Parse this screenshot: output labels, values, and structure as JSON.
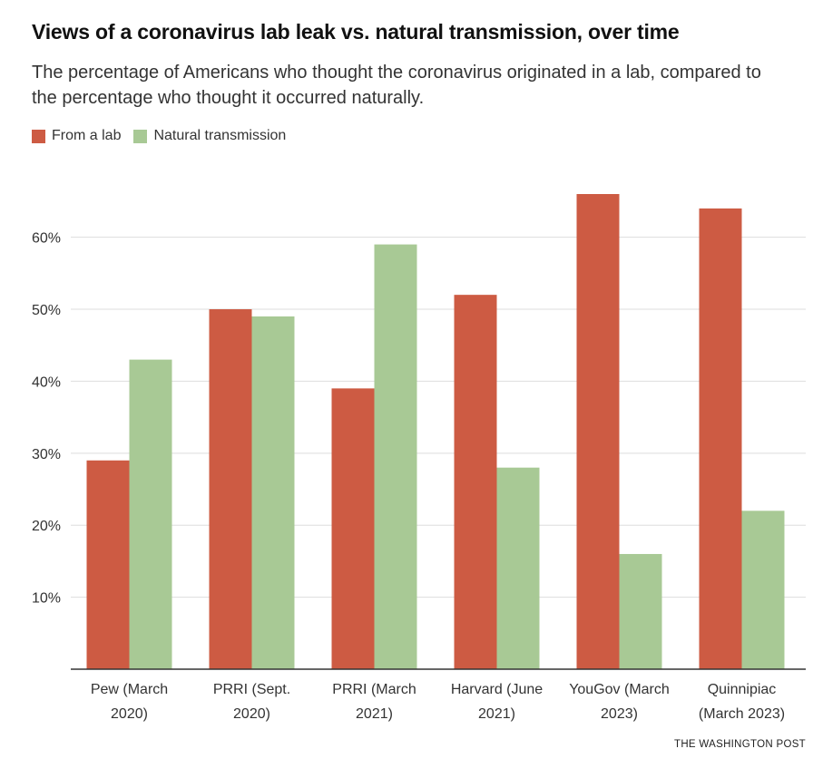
{
  "title": "Views of a coronavirus lab leak vs. natural transmission, over time",
  "subtitle": "The percentage of Americans who thought the coronavirus originated in a lab, compared to the percentage who thought it occurred naturally.",
  "credit": "THE WASHINGTON POST",
  "colors": {
    "lab": "#cd5b43",
    "natural": "#a8c995",
    "grid": "#dddddd",
    "axis": "#333333"
  },
  "chart_data": {
    "type": "bar",
    "title": "Views of a coronavirus lab leak vs. natural transmission, over time",
    "categories": [
      [
        "Pew (March",
        "2020)"
      ],
      [
        "PRRI (Sept.",
        "2020)"
      ],
      [
        "PRRI (March",
        "2021)"
      ],
      [
        "Harvard (June",
        "2021)"
      ],
      [
        "YouGov (March",
        "2023)"
      ],
      [
        "Quinnipiac",
        "(March 2023)"
      ]
    ],
    "series": [
      {
        "name": "From a lab",
        "values": [
          29,
          50,
          39,
          52,
          66,
          64
        ]
      },
      {
        "name": "Natural transmission",
        "values": [
          43,
          49,
          59,
          28,
          16,
          22
        ]
      }
    ],
    "yticks": [
      "10%",
      "20%",
      "30%",
      "40%",
      "50%",
      "60%"
    ],
    "ytick_values": [
      10,
      20,
      30,
      40,
      50,
      60
    ],
    "ylim": [
      0,
      66
    ],
    "grid": true,
    "legend": "top-left"
  }
}
